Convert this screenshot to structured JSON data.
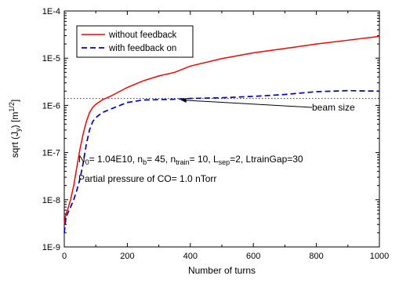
{
  "chart_data": {
    "type": "line",
    "title": "",
    "xlabel": "Number of turns",
    "ylabel": "sqrt (J",
    "ylabel_sub": "y",
    "ylabel_tail": ") [m",
    "ylabel_sup": "1/2",
    "ylabel_end": "]",
    "xlim": [
      0,
      1000
    ],
    "ylim": [
      1e-09,
      0.0001
    ],
    "yscale": "log",
    "grid": false,
    "legend_position": "top-left",
    "x_ticks": [
      0,
      200,
      400,
      600,
      800,
      1000
    ],
    "x_tick_labels": [
      "0",
      "200",
      "400",
      "600",
      "800",
      "1000"
    ],
    "y_ticks": [
      1e-09,
      1e-08,
      1e-07,
      1e-06,
      1e-05,
      0.0001
    ],
    "y_tick_labels": [
      "1E-9",
      "1E-8",
      "1E-7",
      "1E-6",
      "1E-5",
      "1E-4"
    ],
    "series": [
      {
        "name": "without feedback",
        "color": "#ff0000",
        "style": "solid",
        "x": [
          0,
          5,
          10,
          20,
          30,
          40,
          50,
          60,
          70,
          80,
          90,
          100,
          120,
          150,
          200,
          250,
          300,
          350,
          400,
          500,
          600,
          700,
          800,
          900,
          1000
        ],
        "y": [
          3e-09,
          5e-09,
          6e-09,
          1e-08,
          2e-08,
          5e-08,
          1.2e-07,
          2.5e-07,
          4.5e-07,
          7e-07,
          9e-07,
          1.05e-06,
          1.3e-06,
          1.6e-06,
          2.4e-06,
          3.3e-06,
          4.2e-06,
          5e-06,
          6.8e-06,
          9.8e-06,
          1.3e-05,
          1.6e-05,
          2e-05,
          2.4e-05,
          2.9e-05
        ]
      },
      {
        "name": "with feedback on",
        "color": "#0000cc",
        "style": "dashed",
        "x": [
          0,
          5,
          10,
          20,
          30,
          40,
          50,
          60,
          70,
          80,
          90,
          100,
          120,
          150,
          200,
          250,
          300,
          350,
          400,
          500,
          600,
          700,
          800,
          900,
          1000
        ],
        "y": [
          2e-09,
          4e-09,
          5e-09,
          7e-09,
          1e-08,
          1.6e-08,
          2.8e-08,
          6e-08,
          1.5e-07,
          3e-07,
          4.5e-07,
          5.5e-07,
          7e-07,
          8.5e-07,
          1.15e-06,
          1.3e-06,
          1.32e-06,
          1.35e-06,
          1.4e-06,
          1.45e-06,
          1.55e-06,
          1.7e-06,
          1.95e-06,
          2.05e-06,
          2e-06
        ]
      }
    ],
    "reference_lines": [
      {
        "label": "beam size",
        "y": 1.4e-06,
        "style": "dotted",
        "color": "#333333"
      }
    ],
    "annotations": {
      "params_line": [
        {
          "t": "N",
          "s": "n"
        },
        {
          "t": "0",
          "s": "sub"
        },
        {
          "t": "= 1.04E10, n",
          "s": "n"
        },
        {
          "t": "b",
          "s": "sub"
        },
        {
          "t": "= 45, n",
          "s": "n"
        },
        {
          "t": "train",
          "s": "sub"
        },
        {
          "t": "= 10, L",
          "s": "n"
        },
        {
          "t": "sep",
          "s": "sub"
        },
        {
          "t": "=2, LtrainGap=30",
          "s": "n"
        }
      ],
      "pressure_line": "Partial pressure of CO= 1.0 nTorr",
      "beam_size_label": "beam size",
      "beam_size_arrow_at_x": 370
    }
  }
}
